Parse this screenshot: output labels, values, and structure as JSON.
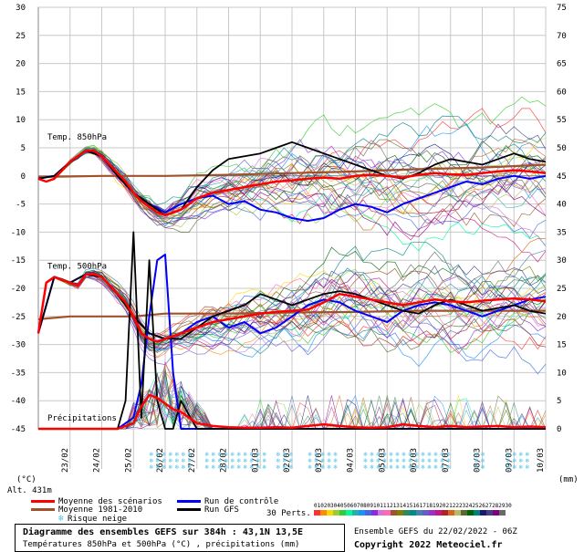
{
  "chart_data": {
    "type": "line",
    "left_axis": {
      "unit_label": "(°C)",
      "ticks": [
        30,
        25,
        20,
        15,
        10,
        5,
        0,
        -5,
        -10,
        -15,
        -20,
        -25,
        -30,
        -35,
        -40,
        -45
      ]
    },
    "right_axis": {
      "unit_label": "(mm)",
      "ticks": [
        75,
        70,
        65,
        60,
        55,
        50,
        45,
        40,
        35,
        30,
        25,
        20,
        15,
        10,
        5,
        0
      ]
    },
    "altitude_label": "Alt. 431m",
    "dates": [
      "23/02",
      "24/02",
      "25/02",
      "26/02",
      "27/02",
      "28/02",
      "01/03",
      "02/03",
      "03/03",
      "04/03",
      "05/03",
      "06/03",
      "07/03",
      "08/03",
      "09/03",
      "10/03"
    ],
    "panel_labels": {
      "t850": "Temp. 850hPa",
      "t500": "Temp. 500hPa",
      "precip": "Précipitations"
    },
    "grid": true,
    "series": [
      {
        "name": "Moyenne des scénarios",
        "color": "#ff0000",
        "panel": "t850",
        "x": [
          0,
          6,
          12,
          18,
          24,
          30,
          36,
          42,
          48,
          54,
          60,
          66,
          72,
          78,
          84,
          90,
          96,
          102,
          108,
          114,
          120,
          132,
          144,
          156,
          168,
          180,
          192,
          204,
          216,
          228,
          240,
          252,
          264,
          276,
          288,
          300,
          312,
          324,
          336,
          348,
          360,
          372,
          384
        ],
        "values": [
          -0.5,
          -1,
          -0.5,
          1,
          2.5,
          3.5,
          4.5,
          4.5,
          3.5,
          2,
          0.5,
          -1,
          -3,
          -4.5,
          -5.5,
          -6.5,
          -7,
          -6.5,
          -6,
          -5,
          -4,
          -3,
          -2.5,
          -2,
          -1.5,
          -1,
          -0.8,
          -0.5,
          -0.3,
          -0.5,
          0,
          0.2,
          0,
          -0.3,
          0.2,
          0.5,
          0.3,
          0.2,
          0.5,
          0.8,
          1,
          0.8,
          0.5
        ]
      },
      {
        "name": "Moyenne 1981-2010",
        "color": "#a0522d",
        "panel": "t850",
        "x": [
          0,
          48,
          96,
          144,
          192,
          240,
          288,
          336,
          384
        ],
        "values": [
          -0.2,
          0,
          0,
          0.2,
          0.5,
          0.8,
          1.2,
          1.5,
          2
        ]
      },
      {
        "name": "Run de contrôle",
        "color": "#0000ff",
        "panel": "t850",
        "x": [
          0,
          12,
          24,
          36,
          48,
          60,
          72,
          84,
          96,
          108,
          120,
          132,
          144,
          156,
          168,
          180,
          192,
          204,
          216,
          228,
          240,
          252,
          264,
          276,
          288,
          300,
          312,
          324,
          336,
          348,
          360,
          372,
          384
        ],
        "values": [
          -0.5,
          0,
          2.5,
          4.5,
          3.5,
          0,
          -3,
          -5,
          -6.5,
          -5,
          -4,
          -3.5,
          -5,
          -4.5,
          -6,
          -6.5,
          -7.5,
          -8,
          -7.5,
          -6,
          -5,
          -5.5,
          -6.5,
          -5,
          -4,
          -3,
          -2,
          -1,
          -1.5,
          -0.5,
          0,
          -0.5,
          0
        ]
      },
      {
        "name": "Run GFS",
        "color": "#000000",
        "panel": "t850",
        "x": [
          0,
          12,
          24,
          36,
          48,
          60,
          72,
          84,
          96,
          108,
          120,
          132,
          144,
          156,
          168,
          180,
          192,
          204,
          216,
          228,
          240,
          252,
          264,
          276,
          288,
          300,
          312,
          324,
          336,
          348,
          360,
          372,
          384
        ],
        "values": [
          -0.5,
          0,
          2.5,
          4.5,
          3.5,
          0,
          -3,
          -5,
          -7,
          -6,
          -2,
          1,
          3,
          3.5,
          4,
          5,
          6,
          5,
          4,
          3,
          2,
          1,
          0,
          -0.5,
          0.5,
          2,
          3,
          2.5,
          2,
          3,
          4,
          3,
          2.5
        ]
      },
      {
        "name": "Moyenne des scénarios",
        "color": "#ff0000",
        "panel": "t500",
        "x": [
          0,
          6,
          12,
          18,
          24,
          30,
          36,
          42,
          48,
          54,
          60,
          66,
          72,
          78,
          84,
          90,
          96,
          108,
          120,
          132,
          144,
          156,
          168,
          180,
          192,
          204,
          216,
          228,
          240,
          252,
          264,
          276,
          288,
          300,
          312,
          324,
          336,
          348,
          360,
          372,
          384
        ],
        "values": [
          -28,
          -19,
          -18,
          -18.5,
          -19,
          -19.5,
          -17.5,
          -17.5,
          -18,
          -19.5,
          -21,
          -22.5,
          -25,
          -28,
          -29,
          -29.5,
          -29,
          -28,
          -27,
          -26,
          -25.5,
          -25,
          -24.5,
          -24.2,
          -24,
          -23.8,
          -22.5,
          -21,
          -21.5,
          -22,
          -22.5,
          -23,
          -22.5,
          -22,
          -22.3,
          -22.5,
          -22.2,
          -22,
          -21.8,
          -22,
          -22.3
        ]
      },
      {
        "name": "Moyenne 1981-2010",
        "color": "#a0522d",
        "panel": "t500",
        "x": [
          0,
          24,
          48,
          72,
          96,
          144,
          192,
          240,
          288,
          336,
          384
        ],
        "values": [
          -25.5,
          -25,
          -25,
          -25,
          -24.5,
          -24.5,
          -24.3,
          -24.2,
          -24,
          -24,
          -24
        ]
      },
      {
        "name": "Run de contrôle",
        "color": "#0000ff",
        "panel": "t500",
        "x": [
          0,
          12,
          24,
          36,
          48,
          60,
          72,
          84,
          96,
          108,
          120,
          132,
          144,
          156,
          168,
          180,
          192,
          204,
          216,
          228,
          240,
          252,
          264,
          276,
          288,
          300,
          312,
          324,
          336,
          348,
          360,
          372,
          384
        ],
        "values": [
          -28,
          -18,
          -19,
          -17.5,
          -18,
          -21,
          -25,
          -28,
          -29,
          -28,
          -26,
          -25,
          -27,
          -26,
          -28,
          -27,
          -25,
          -23,
          -22,
          -22.5,
          -24,
          -25,
          -26,
          -24,
          -23,
          -22.5,
          -23,
          -24,
          -25,
          -24,
          -23,
          -22,
          -21.5
        ]
      },
      {
        "name": "Run GFS",
        "color": "#000000",
        "panel": "t500",
        "x": [
          0,
          12,
          24,
          36,
          48,
          60,
          72,
          84,
          96,
          108,
          120,
          132,
          144,
          156,
          168,
          180,
          192,
          204,
          216,
          228,
          240,
          252,
          264,
          276,
          288,
          300,
          312,
          324,
          336,
          348,
          360,
          372,
          384
        ],
        "values": [
          -28,
          -18,
          -19,
          -17.5,
          -18,
          -21,
          -25,
          -28,
          -29,
          -29,
          -27,
          -25,
          -24,
          -23,
          -21,
          -22,
          -23,
          -22,
          -21,
          -20.5,
          -21,
          -22,
          -23,
          -24,
          -24.5,
          -23,
          -22,
          -23,
          -24,
          -23.5,
          -23,
          -24,
          -24.5
        ]
      },
      {
        "name": "Moyenne des scénarios",
        "color": "#ff0000",
        "panel": "precip",
        "x": [
          0,
          60,
          72,
          78,
          84,
          90,
          96,
          102,
          108,
          114,
          120,
          132,
          144,
          156,
          168,
          180,
          192,
          204,
          216,
          228,
          240,
          252,
          264,
          276,
          288,
          300,
          312,
          324,
          336,
          348,
          360,
          372,
          384
        ],
        "values": [
          0,
          0,
          1,
          4,
          6,
          5.5,
          4.5,
          3.5,
          3,
          2,
          1,
          0.5,
          0.3,
          0.2,
          0.2,
          0.3,
          0.2,
          0.5,
          0.8,
          0.5,
          0.3,
          0.2,
          0.3,
          0.8,
          0.5,
          0.3,
          0.5,
          0.3,
          0.4,
          0.5,
          0.3,
          0.4,
          0.3
        ]
      },
      {
        "name": "Run de contrôle",
        "color": "#0000ff",
        "panel": "precip",
        "x": [
          0,
          60,
          72,
          78,
          84,
          90,
          96,
          102,
          108,
          384
        ],
        "values": [
          0,
          0,
          2,
          8,
          20,
          30,
          31,
          10,
          0,
          0
        ]
      },
      {
        "name": "Run GFS",
        "color": "#000000",
        "panel": "precip",
        "x": [
          0,
          60,
          66,
          72,
          78,
          84,
          90,
          96,
          102,
          108,
          120,
          240,
          384
        ],
        "values": [
          0,
          0,
          5,
          35,
          2,
          30,
          5,
          0,
          0,
          5,
          0,
          0,
          0
        ]
      }
    ],
    "legend": {
      "mean": "Moyenne des scénarios",
      "clim": "Moyenne 1981-2010",
      "snow": "Risque neige",
      "control": "Run de contrôle",
      "gfs": "Run GFS",
      "perts": "30 Perts.",
      "pert_numbers": [
        "01",
        "02",
        "03",
        "04",
        "05",
        "06",
        "07",
        "08",
        "09",
        "10",
        "11",
        "12",
        "13",
        "14",
        "15",
        "16",
        "17",
        "18",
        "19",
        "20",
        "21",
        "22",
        "23",
        "24",
        "25",
        "26",
        "27",
        "28",
        "29",
        "30"
      ],
      "pert_colors": [
        "#ff3030",
        "#ff8c00",
        "#ffd700",
        "#9acd32",
        "#32cd32",
        "#00fa9a",
        "#20b2aa",
        "#1e90ff",
        "#4169e1",
        "#8a2be2",
        "#da70d6",
        "#ff69b4",
        "#a0522d",
        "#808000",
        "#2e8b57",
        "#008b8b",
        "#4682b4",
        "#6a5acd",
        "#9932cc",
        "#c71585",
        "#b22222",
        "#d2691e",
        "#bdb76b",
        "#556b2f",
        "#006400",
        "#008080",
        "#191970",
        "#483d8b",
        "#800080",
        "#696969"
      ]
    },
    "snow_risk": {
      "label": "Risque neige",
      "intervals_hours": [
        [
          84,
          114
        ],
        [
          126,
          174
        ],
        [
          180,
          192
        ],
        [
          204,
          228
        ],
        [
          246,
          312
        ],
        [
          330,
          336
        ],
        [
          354,
          372
        ]
      ]
    }
  },
  "footer": {
    "title": "Diagramme des ensembles GEFS sur 384h : 43,1N 13,5E",
    "subtitle": "Températures 850hPa et 500hPa (°C) , précipitations (mm)",
    "run_info": "Ensemble GEFS du 22/02/2022 - 06Z",
    "copyright": "Copyright 2022 Meteociel.fr"
  }
}
